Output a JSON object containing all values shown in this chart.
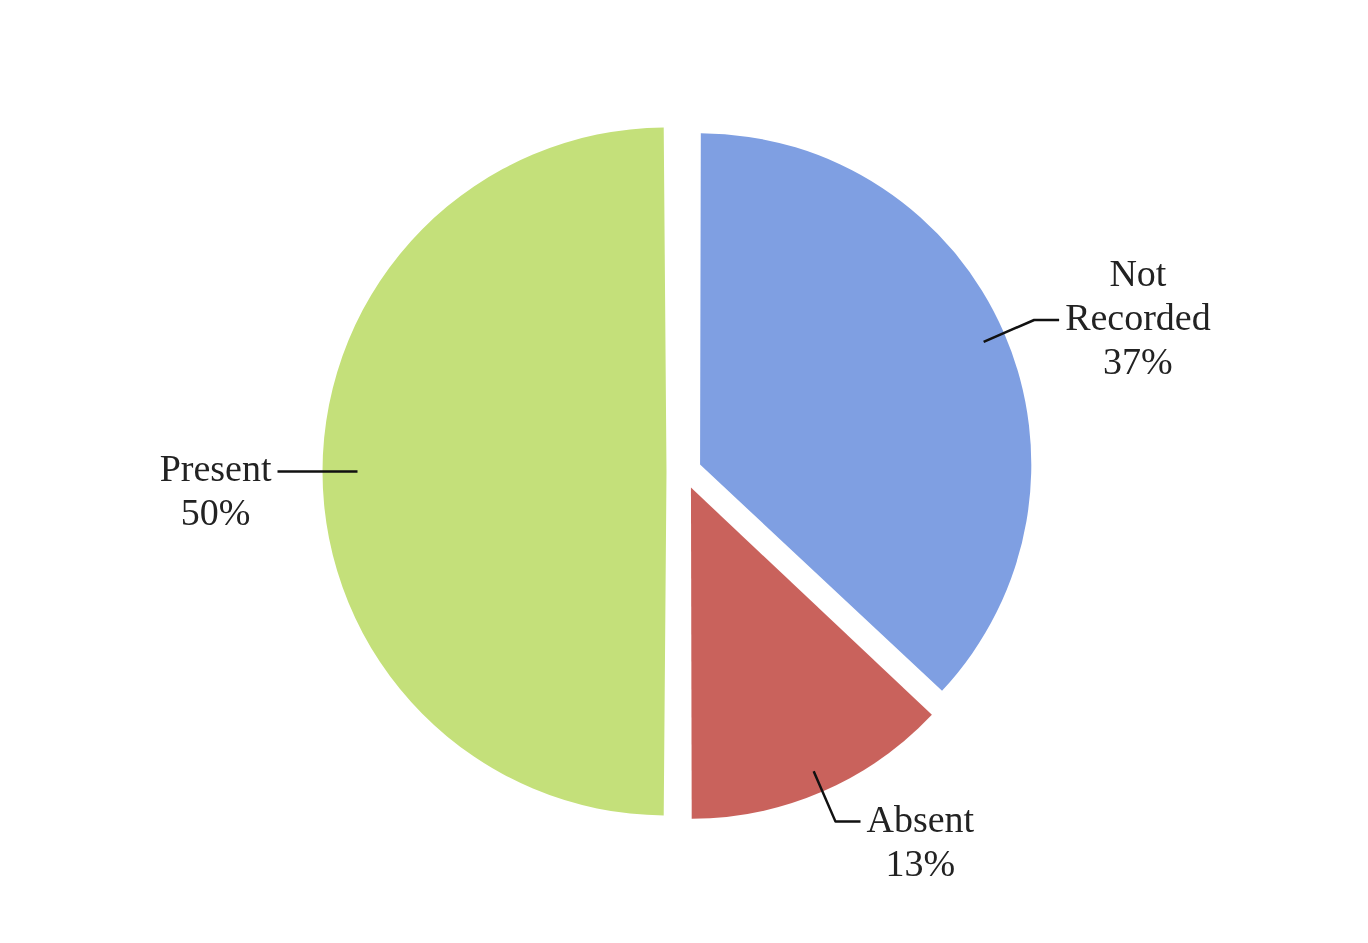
{
  "chart_data": {
    "type": "pie",
    "categories": [
      "Not Recorded",
      "Absent",
      "Present"
    ],
    "values": [
      37,
      13,
      50
    ],
    "colors": [
      "#7f9fe2",
      "#c9625c",
      "#c4e07a"
    ],
    "value_labels": [
      "37%",
      "13%",
      "50%"
    ],
    "legend": false
  }
}
